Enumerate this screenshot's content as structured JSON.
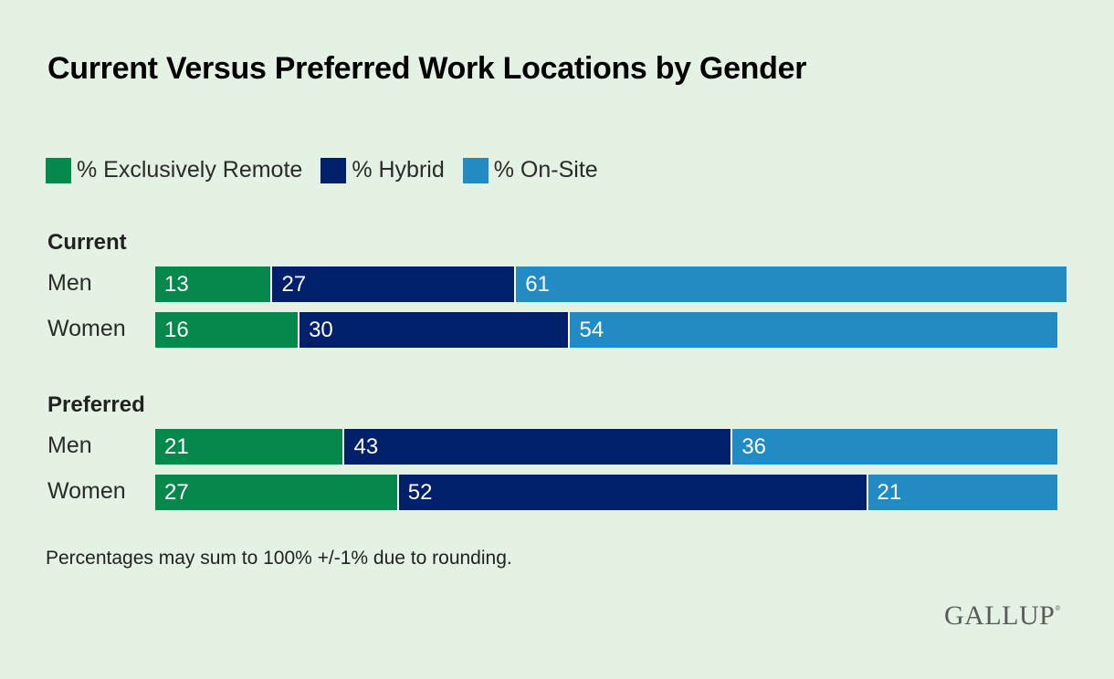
{
  "chart_data": {
    "type": "bar",
    "orientation": "horizontal",
    "stacked": true,
    "title": "Current Versus Preferred Work Locations by Gender",
    "legend": {
      "placement": "top-left",
      "entries": [
        "% Exclusively Remote",
        "% Hybrid",
        "% On-Site"
      ]
    },
    "colors": {
      "% Exclusively Remote": "#05884c",
      "% Hybrid": "#00206b",
      "% On-Site": "#228bc4"
    },
    "xlim": [
      0,
      100
    ],
    "groups": [
      {
        "label": "Current",
        "rows": [
          {
            "label": "Men",
            "values": [
              13,
              27,
              61
            ]
          },
          {
            "label": "Women",
            "values": [
              16,
              30,
              54
            ]
          }
        ]
      },
      {
        "label": "Preferred",
        "rows": [
          {
            "label": "Men",
            "values": [
              21,
              43,
              36
            ]
          },
          {
            "label": "Women",
            "values": [
              27,
              52,
              21
            ]
          }
        ]
      }
    ],
    "note": "Percentages may sum to 100% +/-1% due to rounding."
  },
  "brand": {
    "logo_text": "GALLUP",
    "background": "#e3f2e2"
  }
}
